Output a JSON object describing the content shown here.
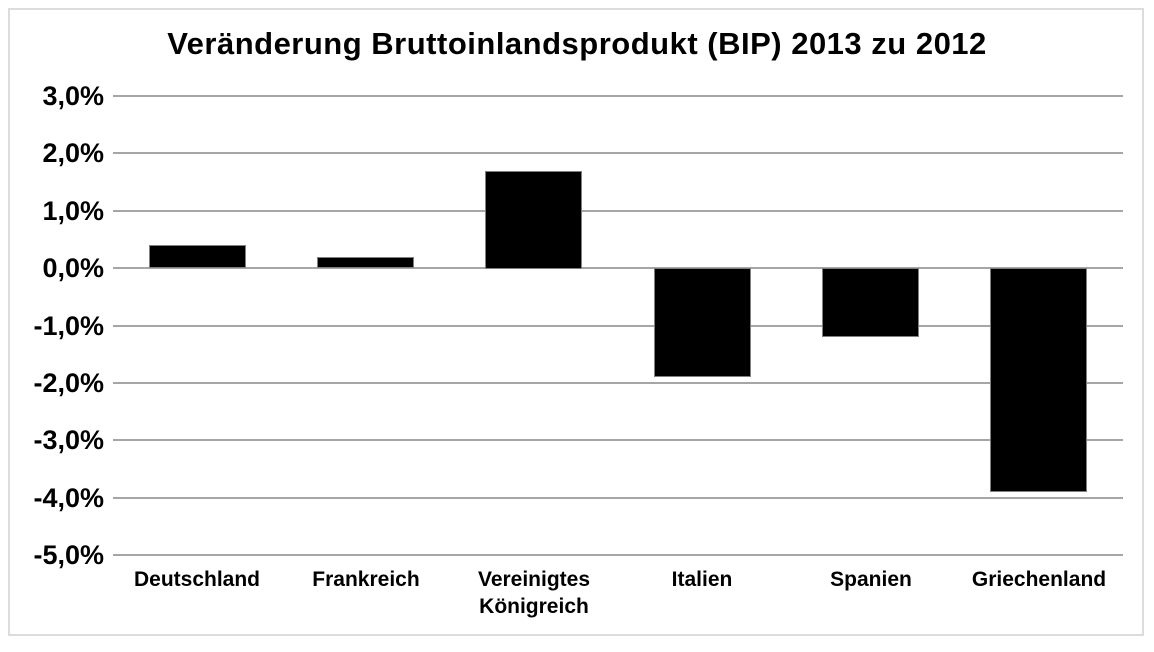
{
  "chart_data": {
    "type": "bar",
    "title": "Veränderung Bruttoinlandsprodukt (BIP) 2013 zu 2012",
    "categories": [
      "Deutschland",
      "Frankreich",
      "Vereinigtes Königreich",
      "Italien",
      "Spanien",
      "Griechenland"
    ],
    "values": [
      0.4,
      0.2,
      1.7,
      -1.9,
      -1.2,
      -3.9
    ],
    "value_unit": "%",
    "xlabel": "",
    "ylabel": "",
    "ylim": [
      -5.0,
      3.0
    ],
    "y_tick_step": 1.0,
    "y_tick_labels": [
      "3,0%",
      "2,0%",
      "1,0%",
      "0,0%",
      "-1,0%",
      "-2,0%",
      "-3,0%",
      "-4,0%",
      "-5,0%"
    ],
    "grid": "horizontal",
    "legend": "none",
    "colors": {
      "bar_fill": "#000000",
      "bar_outline": "#808080",
      "gridline": "#a6a6a6",
      "text": "#000000",
      "frame_border": "#dcdcdc",
      "background": "#ffffff"
    }
  }
}
